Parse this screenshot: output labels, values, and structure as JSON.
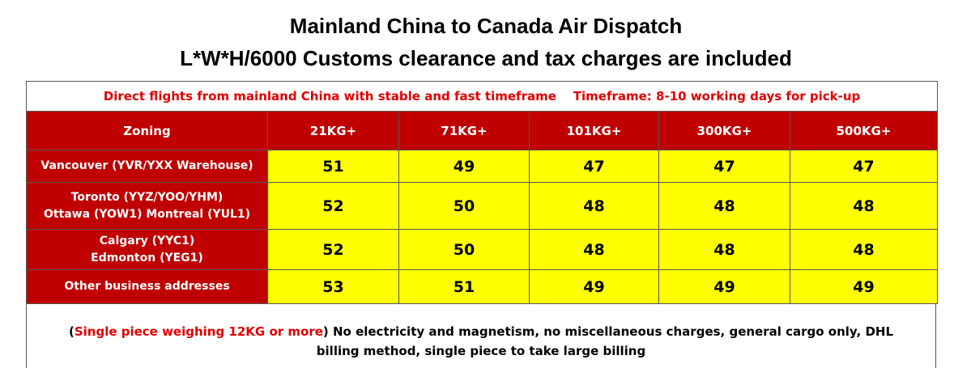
{
  "header": {
    "title": "Mainland China to Canada Air Dispatch",
    "subtitle": "L*W*H/6000  Customs clearance and tax charges are included"
  },
  "table": {
    "notice": [
      "Direct flights from mainland China with stable and fast timeframe",
      "Timeframe: 8-10 working days for pick-up"
    ],
    "columns": [
      "Zoning",
      "21KG+",
      "71KG+",
      "101KG+",
      "300KG+",
      "500KG+"
    ],
    "rows": [
      {
        "zone": [
          "Vancouver (YVR/YXX Warehouse)"
        ],
        "prices": [
          "51",
          "49",
          "47",
          "47",
          "47"
        ]
      },
      {
        "zone": [
          "Toronto (YYZ/YOO/YHM)",
          "Ottawa (YOW1) Montreal (YUL1)"
        ],
        "prices": [
          "52",
          "50",
          "48",
          "48",
          "48"
        ]
      },
      {
        "zone": [
          "Calgary (YYC1)",
          "Edmonton (YEG1)"
        ],
        "prices": [
          "52",
          "50",
          "48",
          "48",
          "48"
        ]
      },
      {
        "zone": [
          "Other business addresses"
        ],
        "prices": [
          "53",
          "51",
          "49",
          "49",
          "49"
        ]
      }
    ]
  },
  "footer": {
    "open": "(",
    "highlight": "Single piece weighing 12KG or more",
    "text": ") No electricity and magnetism, no miscellaneous charges, general cargo only, DHL billing method, single piece to take large billing"
  }
}
